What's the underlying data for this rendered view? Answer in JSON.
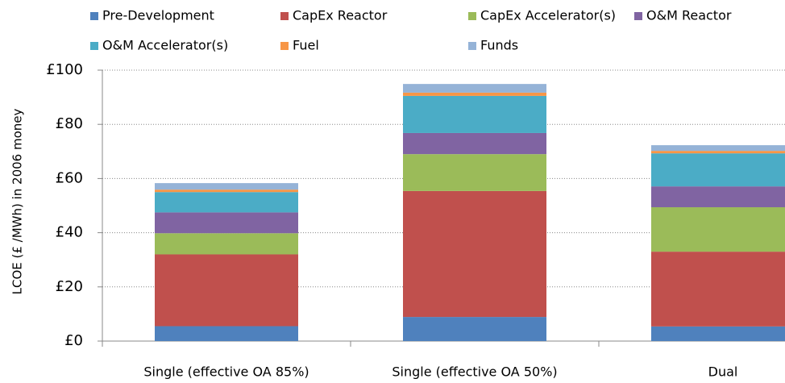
{
  "chart_data": {
    "type": "stacked_bar",
    "y_label": "LCOE (£ /MWh) in 2006 money",
    "categories": [
      "Single (effective OA 85%)",
      "Single (effective OA 50%)",
      "Dual"
    ],
    "series": [
      {
        "name": "Pre-Development",
        "color": "#4f81bd",
        "values": [
          5.5,
          8.9,
          5.4
        ]
      },
      {
        "name": "CapEx Reactor",
        "color": "#c0504d",
        "values": [
          26.5,
          46.5,
          27.6
        ]
      },
      {
        "name": "CapEx Accelerator(s)",
        "color": "#9bbb59",
        "values": [
          7.8,
          13.6,
          16.4
        ]
      },
      {
        "name": "O&M Reactor",
        "color": "#8064a2",
        "values": [
          7.7,
          7.8,
          7.7
        ]
      },
      {
        "name": "O&M Accelerator(s)",
        "color": "#4bacc6",
        "values": [
          7.5,
          13.7,
          12.2
        ]
      },
      {
        "name": "Fuel",
        "color": "#f79646",
        "values": [
          0.9,
          1.2,
          0.9
        ]
      },
      {
        "name": "Funds",
        "color": "#95b3d7",
        "values": [
          2.4,
          3.2,
          2.1
        ]
      }
    ],
    "ylim": [
      0,
      100
    ],
    "yticks": [
      {
        "value": 0,
        "label": "£0"
      },
      {
        "value": 20,
        "label": "£20"
      },
      {
        "value": 40,
        "label": "£40"
      },
      {
        "value": 60,
        "label": "£60"
      },
      {
        "value": 80,
        "label": "£80"
      },
      {
        "value": 100,
        "label": "£100"
      }
    ],
    "grid": true
  }
}
